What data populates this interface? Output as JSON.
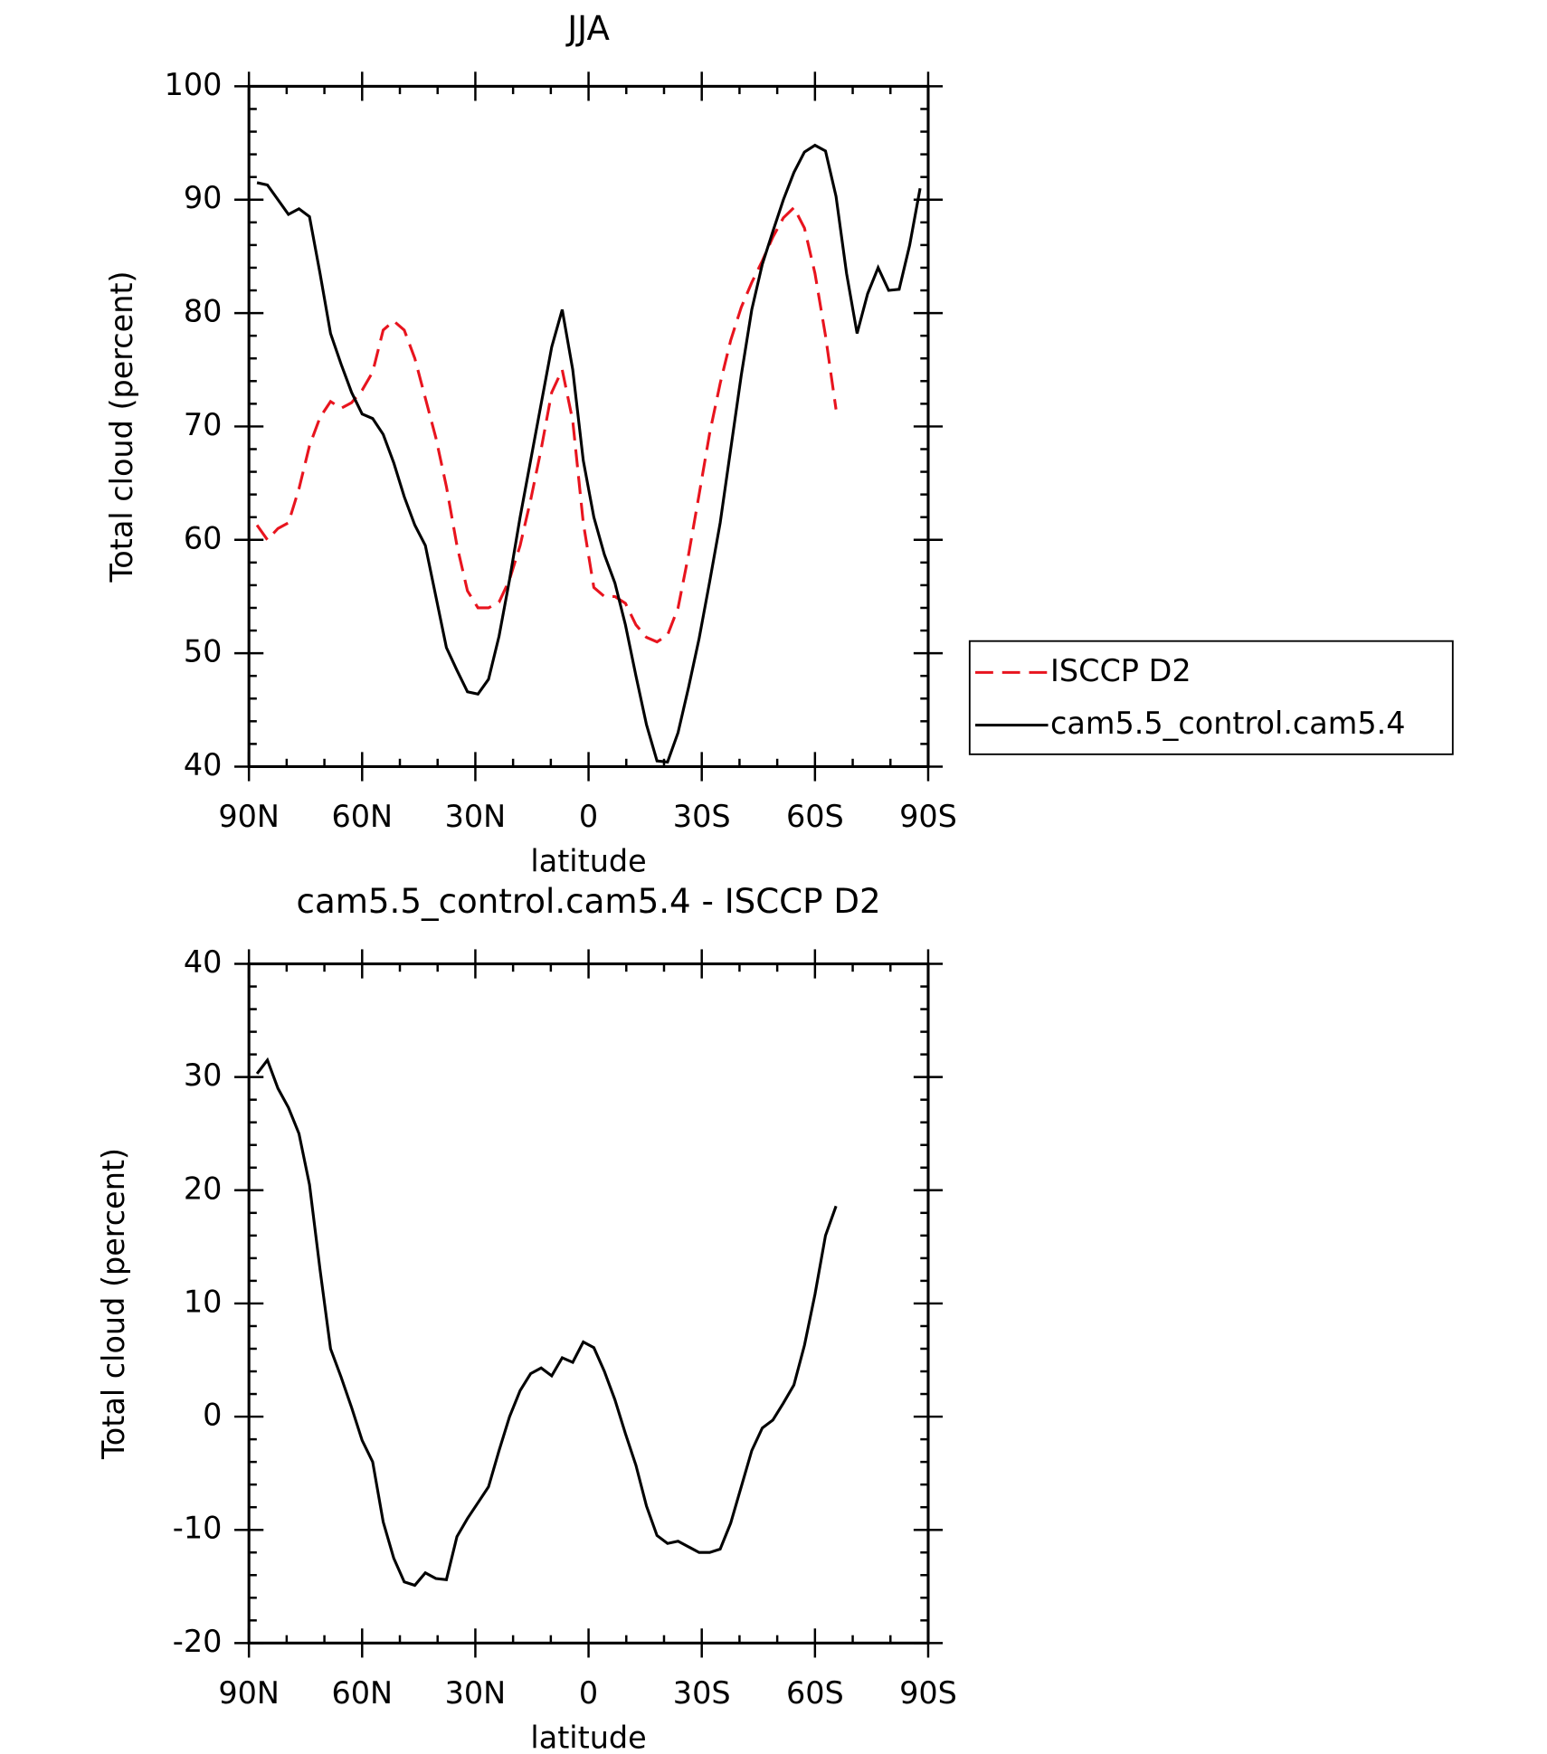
{
  "chart_data": [
    {
      "type": "line",
      "title": "JJA",
      "xlabel": "latitude",
      "ylabel": "Total cloud (percent)",
      "x": [
        87.86,
        85.1,
        82.31,
        79.53,
        76.74,
        73.95,
        71.16,
        68.37,
        65.58,
        62.79,
        60.0,
        57.21,
        54.42,
        51.63,
        48.84,
        46.04,
        43.25,
        40.46,
        37.67,
        34.88,
        32.09,
        29.3,
        26.51,
        23.72,
        20.93,
        18.14,
        15.35,
        12.56,
        9.77,
        6.98,
        4.19,
        1.4,
        -1.4,
        -4.19,
        -6.98,
        -9.77,
        -12.56,
        -15.35,
        -18.14,
        -20.93,
        -23.72,
        -26.51,
        -29.3,
        -32.09,
        -34.88,
        -37.67,
        -40.46,
        -43.25,
        -46.04,
        -48.84,
        -51.63,
        -54.42,
        -57.21,
        -60.0,
        -62.79,
        -65.58,
        -68.37,
        -71.16,
        -73.95,
        -76.74,
        -79.53,
        -82.31,
        -85.1,
        -87.86
      ],
      "series": [
        {
          "name": "ISCCP D2",
          "color": "#e8141e",
          "linestyle": "dashed",
          "values": [
            61.3,
            60,
            61,
            61.5,
            64.5,
            68.3,
            70.8,
            72.2,
            71.6,
            72.1,
            73.2,
            74.8,
            78.5,
            79.3,
            78.5,
            76,
            72.5,
            69,
            64.7,
            59.5,
            55.5,
            54,
            54,
            54.5,
            56.5,
            59.5,
            63.5,
            68,
            73,
            75,
            70.5,
            61.5,
            55.8,
            55,
            55,
            54.4,
            52.5,
            51.4,
            51,
            51.6,
            54,
            58.7,
            64,
            69.4,
            73.8,
            77.6,
            80.5,
            82.7,
            84.6,
            86.7,
            88.4,
            89.3,
            87.5,
            83.5,
            78,
            71.5,
            null,
            null,
            null,
            null,
            null,
            null,
            null,
            null
          ]
        },
        {
          "name": "cam5.5_control.cam5.4",
          "color": "#000000",
          "linestyle": "solid",
          "values": [
            91.5,
            91.3,
            90,
            88.7,
            89.2,
            88.5,
            83.5,
            78.2,
            75.5,
            73,
            71.1,
            70.7,
            69.3,
            66.8,
            63.8,
            61.3,
            59.5,
            55,
            50.5,
            48.5,
            46.6,
            46.4,
            47.7,
            51.5,
            56.5,
            62,
            67,
            72,
            77,
            80.3,
            75,
            67,
            62,
            58.7,
            56.2,
            52.5,
            48,
            43.7,
            40.5,
            40.4,
            43,
            47,
            51.3,
            56.3,
            61.5,
            68,
            74.5,
            80.3,
            84.3,
            87.2,
            90,
            92.4,
            94.2,
            94.8,
            94.3,
            90.3,
            83.5,
            78.2,
            81.7,
            84,
            82,
            82.1,
            86,
            91
          ]
        }
      ],
      "xlim": [
        90,
        -90
      ],
      "xticks": [
        {
          "value": 90,
          "label": "90N"
        },
        {
          "value": 60,
          "label": "60N"
        },
        {
          "value": 30,
          "label": "30N"
        },
        0,
        {
          "value": -30,
          "label": "30S"
        },
        {
          "value": -60,
          "label": "60S"
        },
        {
          "value": -90,
          "label": "90S"
        }
      ],
      "ylim": [
        40,
        100
      ],
      "yticks": [
        40,
        50,
        60,
        70,
        80,
        90,
        100
      ],
      "legend": "right"
    },
    {
      "type": "line",
      "title": "cam5.5_control.cam5.4 - ISCCP D2",
      "xlabel": "latitude",
      "ylabel": "Total cloud (percent)",
      "x": [
        87.86,
        85.1,
        82.31,
        79.53,
        76.74,
        73.95,
        71.16,
        68.37,
        65.58,
        62.79,
        60.0,
        57.21,
        54.42,
        51.63,
        48.84,
        46.04,
        43.25,
        40.46,
        37.67,
        34.88,
        32.09,
        29.3,
        26.51,
        23.72,
        20.93,
        18.14,
        15.35,
        12.56,
        9.77,
        6.98,
        4.19,
        1.4,
        -1.4,
        -4.19,
        -6.98,
        -9.77,
        -12.56,
        -15.35,
        -18.14,
        -20.93,
        -23.72,
        -26.51,
        -29.3,
        -32.09,
        -34.88,
        -37.67,
        -40.46,
        -43.25,
        -46.04,
        -48.84,
        -51.63,
        -54.42,
        -57.21,
        -60.0,
        -62.79,
        -65.58
      ],
      "values": [
        30.3,
        31.5,
        29,
        27.3,
        25,
        20.5,
        13,
        6,
        3.5,
        0.8,
        -2.1,
        -4,
        -9.3,
        -12.5,
        -14.6,
        -14.9,
        -13.8,
        -14.3,
        -14.4,
        -10.6,
        -9,
        -7.6,
        -6.2,
        -3,
        0,
        2.3,
        3.8,
        4.3,
        3.6,
        5.2,
        4.8,
        6.6,
        6.1,
        4,
        1.5,
        -1.5,
        -4.3,
        -7.9,
        -10.5,
        -11.2,
        -11,
        -11.5,
        -12,
        -12,
        -11.7,
        -9.4,
        -6.2,
        -3,
        -1,
        -0.3,
        1.2,
        2.8,
        6.3,
        10.8,
        16,
        18.6
      ],
      "color": "#000000",
      "xlim": [
        90,
        -90
      ],
      "xticks": [
        {
          "value": 90,
          "label": "90N"
        },
        {
          "value": 60,
          "label": "60N"
        },
        {
          "value": 30,
          "label": "30N"
        },
        0,
        {
          "value": -30,
          "label": "30S"
        },
        {
          "value": -60,
          "label": "60S"
        },
        {
          "value": -90,
          "label": "90S"
        }
      ],
      "ylim": [
        -20,
        40
      ],
      "yticks": [
        -20,
        -10,
        0,
        10,
        20,
        30,
        40
      ]
    }
  ]
}
